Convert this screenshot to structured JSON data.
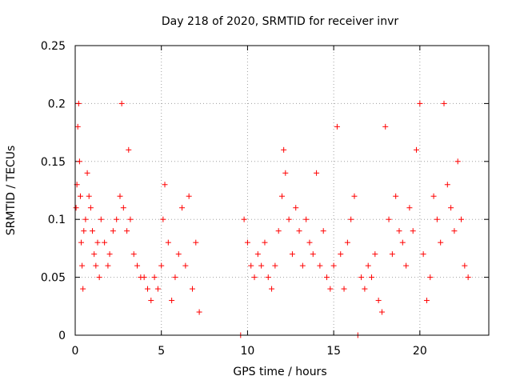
{
  "chart_data": {
    "type": "scatter",
    "title": "Day 218 of 2020, SRMTID for receiver invr",
    "xlabel": "GPS time / hours",
    "ylabel": "SRMTID / TECUs",
    "xlim": [
      0,
      24
    ],
    "ylim": [
      0,
      0.25
    ],
    "xticks": [
      0,
      5,
      10,
      15,
      20
    ],
    "yticks": [
      0,
      0.05,
      0.1,
      0.15,
      0.2,
      0.25
    ],
    "xtick_labels": [
      "0",
      "5",
      "10",
      "15",
      "20"
    ],
    "ytick_labels": [
      "0",
      "0.05",
      "0.1",
      "0.15",
      "0.2",
      "0.25"
    ],
    "grid": true,
    "marker": "+",
    "series_color": "#ff0000",
    "series": [
      {
        "values": [
          [
            0.05,
            0.11
          ],
          [
            0.1,
            0.13
          ],
          [
            0.15,
            0.18
          ],
          [
            0.2,
            0.2
          ],
          [
            0.25,
            0.15
          ],
          [
            0.3,
            0.12
          ],
          [
            0.35,
            0.08
          ],
          [
            0.4,
            0.06
          ],
          [
            0.45,
            0.04
          ],
          [
            0.5,
            0.09
          ],
          [
            0.6,
            0.1
          ],
          [
            0.7,
            0.14
          ],
          [
            0.8,
            0.12
          ],
          [
            0.9,
            0.11
          ],
          [
            1.0,
            0.09
          ],
          [
            1.1,
            0.07
          ],
          [
            1.2,
            0.06
          ],
          [
            1.3,
            0.08
          ],
          [
            1.4,
            0.05
          ],
          [
            1.5,
            0.1
          ],
          [
            1.7,
            0.08
          ],
          [
            1.9,
            0.06
          ],
          [
            2.0,
            0.07
          ],
          [
            2.2,
            0.09
          ],
          [
            2.4,
            0.1
          ],
          [
            2.6,
            0.12
          ],
          [
            2.7,
            0.2
          ],
          [
            2.8,
            0.11
          ],
          [
            3.0,
            0.09
          ],
          [
            3.1,
            0.16
          ],
          [
            3.2,
            0.1
          ],
          [
            3.4,
            0.07
          ],
          [
            3.6,
            0.06
          ],
          [
            3.8,
            0.05
          ],
          [
            4.0,
            0.05
          ],
          [
            4.2,
            0.04
          ],
          [
            4.4,
            0.03
          ],
          [
            4.6,
            0.05
          ],
          [
            4.8,
            0.04
          ],
          [
            5.0,
            0.06
          ],
          [
            5.1,
            0.1
          ],
          [
            5.2,
            0.13
          ],
          [
            5.4,
            0.08
          ],
          [
            5.6,
            0.03
          ],
          [
            5.8,
            0.05
          ],
          [
            6.0,
            0.07
          ],
          [
            6.2,
            0.11
          ],
          [
            6.4,
            0.06
          ],
          [
            6.6,
            0.12
          ],
          [
            6.8,
            0.04
          ],
          [
            7.0,
            0.08
          ],
          [
            7.2,
            0.02
          ],
          [
            9.6,
            0.0
          ],
          [
            9.8,
            0.1
          ],
          [
            10.0,
            0.08
          ],
          [
            10.2,
            0.06
          ],
          [
            10.4,
            0.05
          ],
          [
            10.6,
            0.07
          ],
          [
            10.8,
            0.06
          ],
          [
            11.0,
            0.08
          ],
          [
            11.2,
            0.05
          ],
          [
            11.4,
            0.04
          ],
          [
            11.6,
            0.06
          ],
          [
            11.8,
            0.09
          ],
          [
            12.0,
            0.12
          ],
          [
            12.1,
            0.16
          ],
          [
            12.2,
            0.14
          ],
          [
            12.4,
            0.1
          ],
          [
            12.6,
            0.07
          ],
          [
            12.8,
            0.11
          ],
          [
            13.0,
            0.09
          ],
          [
            13.2,
            0.06
          ],
          [
            13.4,
            0.1
          ],
          [
            13.6,
            0.08
          ],
          [
            13.8,
            0.07
          ],
          [
            14.0,
            0.14
          ],
          [
            14.2,
            0.06
          ],
          [
            14.4,
            0.09
          ],
          [
            14.6,
            0.05
          ],
          [
            14.8,
            0.04
          ],
          [
            15.0,
            0.06
          ],
          [
            15.2,
            0.18
          ],
          [
            15.4,
            0.07
          ],
          [
            15.6,
            0.04
          ],
          [
            15.8,
            0.08
          ],
          [
            16.0,
            0.1
          ],
          [
            16.2,
            0.12
          ],
          [
            16.4,
            0.0
          ],
          [
            16.6,
            0.05
          ],
          [
            16.8,
            0.04
          ],
          [
            17.0,
            0.06
          ],
          [
            17.2,
            0.05
          ],
          [
            17.4,
            0.07
          ],
          [
            17.6,
            0.03
          ],
          [
            17.8,
            0.02
          ],
          [
            18.0,
            0.18
          ],
          [
            18.2,
            0.1
          ],
          [
            18.4,
            0.07
          ],
          [
            18.6,
            0.12
          ],
          [
            18.8,
            0.09
          ],
          [
            19.0,
            0.08
          ],
          [
            19.2,
            0.06
          ],
          [
            19.4,
            0.11
          ],
          [
            19.6,
            0.09
          ],
          [
            19.8,
            0.16
          ],
          [
            20.0,
            0.2
          ],
          [
            20.2,
            0.07
          ],
          [
            20.4,
            0.03
          ],
          [
            20.6,
            0.05
          ],
          [
            20.8,
            0.12
          ],
          [
            21.0,
            0.1
          ],
          [
            21.2,
            0.08
          ],
          [
            21.4,
            0.2
          ],
          [
            21.6,
            0.13
          ],
          [
            21.8,
            0.11
          ],
          [
            22.0,
            0.09
          ],
          [
            22.2,
            0.15
          ],
          [
            22.4,
            0.1
          ],
          [
            22.6,
            0.06
          ],
          [
            22.8,
            0.05
          ]
        ]
      }
    ]
  }
}
